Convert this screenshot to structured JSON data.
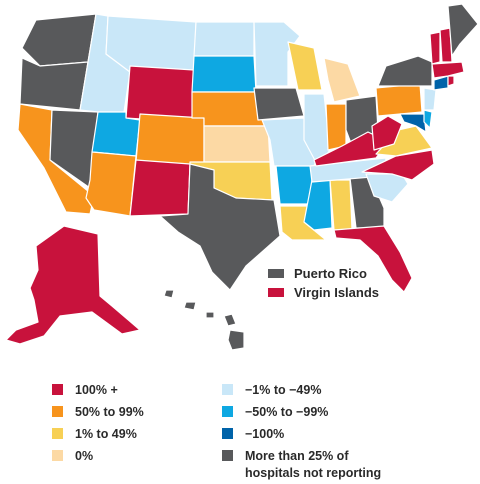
{
  "colors": {
    "c100plus": "#c8123c",
    "c50to99": "#f7941d",
    "c1to49": "#f7d055",
    "c0": "#fcd9a4",
    "cneg1to49": "#c9e7f8",
    "cneg50to99": "#0ea8e2",
    "cneg100": "#0063a9",
    "notreporting": "#58595b"
  },
  "territories": [
    {
      "name": "Puerto Rico",
      "category": "notreporting"
    },
    {
      "name": "Virgin Islands",
      "category": "c100plus"
    }
  ],
  "legend": [
    {
      "category": "c100plus",
      "label": "100% +"
    },
    {
      "category": "c50to99",
      "label": "50% to 99%"
    },
    {
      "category": "c1to49",
      "label": "1% to 49%"
    },
    {
      "category": "c0",
      "label": "0%"
    },
    {
      "category": "cneg1to49",
      "label": "−1% to −49%"
    },
    {
      "category": "cneg50to99",
      "label": "−50% to −99%"
    },
    {
      "category": "cneg100",
      "label": "−100%"
    },
    {
      "category": "notreporting",
      "label": "More than 25%  of hospitals not reporting"
    }
  ]
}
